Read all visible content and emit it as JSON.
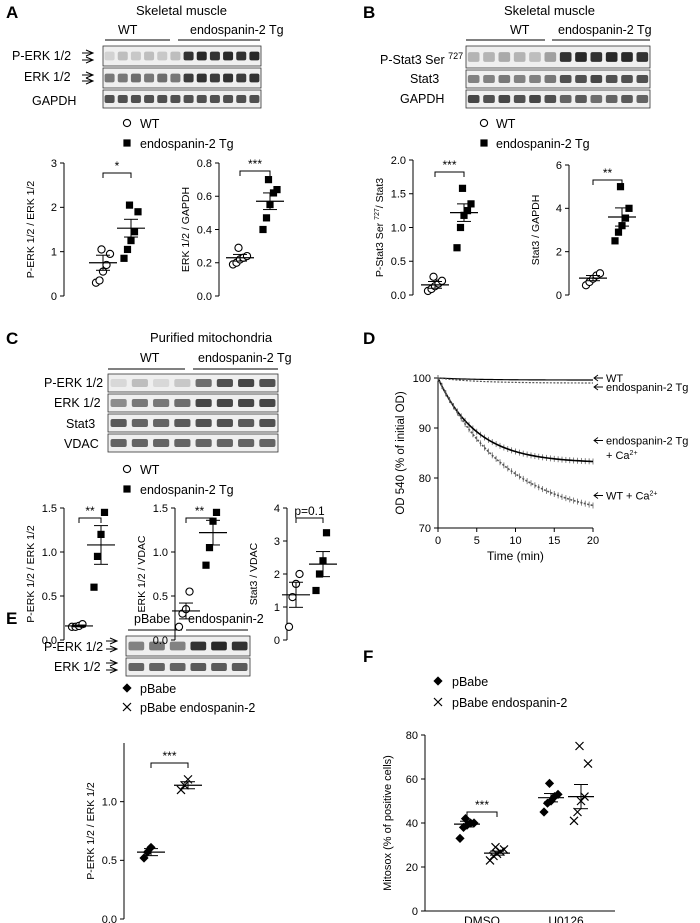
{
  "panels": {
    "A": {
      "letter": "A",
      "title": "Skeletal muscle",
      "groups": [
        "WT",
        "endospanin-2 Tg"
      ],
      "blots": [
        "P-ERK 1/2",
        "ERK 1/2",
        "GAPDH"
      ],
      "legend": [
        "WT",
        "endospanin-2 Tg"
      ]
    },
    "B": {
      "letter": "B",
      "title": "Skeletal muscle",
      "groups": [
        "WT",
        "endospanin-2 Tg"
      ],
      "blots": [
        "P-Stat3 Ser ",
        "Stat3",
        "GAPDH"
      ],
      "blot_sup": "727",
      "legend": [
        "WT",
        "endospanin-2 Tg"
      ]
    },
    "C": {
      "letter": "C",
      "title": "Purified mitochondria",
      "groups": [
        "WT",
        "endospanin-2 Tg"
      ],
      "blots": [
        "P-ERK 1/2",
        "ERK 1/2",
        "Stat3",
        "VDAC"
      ],
      "legend": [
        "WT",
        "endospanin-2 Tg"
      ]
    },
    "D": {
      "letter": "D"
    },
    "E": {
      "letter": "E",
      "groups": [
        "pBabe",
        "endospanin-2"
      ],
      "blots": [
        "P-ERK 1/2",
        "ERK 1/2"
      ],
      "legend": [
        "pBabe",
        "pBabe endospanin-2"
      ]
    },
    "F": {
      "letter": "F",
      "legend": [
        "pBabe",
        "pBabe endospanin-2"
      ]
    }
  },
  "chart_data": [
    {
      "id": "A1",
      "type": "scatter",
      "ylabel": "P-ERK 1/2 / ERK 1/2",
      "ylim": [
        0,
        3
      ],
      "yticks": [
        "0",
        "1",
        "2",
        "3"
      ],
      "significance": "*",
      "series": [
        {
          "name": "WT",
          "values": [
            0.3,
            0.35,
            0.55,
            0.7,
            0.95,
            1.05
          ],
          "mean": 0.75,
          "sem": 0.17
        },
        {
          "name": "endospanin-2 Tg",
          "values": [
            0.85,
            1.05,
            1.25,
            1.45,
            1.9,
            2.05
          ],
          "mean": 1.53,
          "sem": 0.2
        }
      ]
    },
    {
      "id": "A2",
      "type": "scatter",
      "ylabel": "ERK 1/2 / GAPDH",
      "ylim": [
        0,
        0.8
      ],
      "yticks": [
        "0.0",
        "0.2",
        "0.4",
        "0.6",
        "0.8"
      ],
      "significance": "***",
      "series": [
        {
          "name": "WT",
          "values": [
            0.19,
            0.2,
            0.22,
            0.23,
            0.24,
            0.29
          ],
          "mean": 0.23,
          "sem": 0.02
        },
        {
          "name": "endospanin-2 Tg",
          "values": [
            0.4,
            0.47,
            0.55,
            0.62,
            0.64,
            0.7
          ],
          "mean": 0.57,
          "sem": 0.05
        }
      ]
    },
    {
      "id": "B1",
      "type": "scatter",
      "ylabel": "P-Stat3 Ser 727/ Stat3",
      "ylim": [
        0,
        2
      ],
      "yticks": [
        "0.0",
        "0.5",
        "1.0",
        "1.5",
        "2.0"
      ],
      "significance": "***",
      "series": [
        {
          "name": "WT",
          "values": [
            0.06,
            0.09,
            0.13,
            0.17,
            0.21,
            0.27
          ],
          "mean": 0.15,
          "sem": 0.05
        },
        {
          "name": "endospanin-2 Tg",
          "values": [
            0.7,
            1.0,
            1.18,
            1.25,
            1.35,
            1.58
          ],
          "mean": 1.22,
          "sem": 0.13
        }
      ]
    },
    {
      "id": "B2",
      "type": "scatter",
      "ylabel": "Stat3 / GAPDH",
      "ylim": [
        0,
        6
      ],
      "yticks": [
        "0",
        "2",
        "4",
        "6"
      ],
      "significance": "**",
      "series": [
        {
          "name": "WT",
          "values": [
            0.45,
            0.6,
            0.75,
            0.9,
            1.0
          ],
          "mean": 0.78,
          "sem": 0.12
        },
        {
          "name": "endospanin-2 Tg",
          "values": [
            2.5,
            2.9,
            3.2,
            3.55,
            4.0,
            5.0
          ],
          "mean": 3.6,
          "sem": 0.42
        }
      ]
    },
    {
      "id": "C1",
      "type": "scatter",
      "ylabel": "P-ERK 1/2 / ERK 1/2",
      "ylim": [
        0,
        1.5
      ],
      "yticks": [
        "0.0",
        "0.5",
        "1.0",
        "1.5"
      ],
      "significance": "**",
      "series": [
        {
          "name": "WT",
          "values": [
            0.15,
            0.15,
            0.16,
            0.18
          ],
          "mean": 0.16,
          "sem": 0.01
        },
        {
          "name": "endospanin-2 Tg",
          "values": [
            0.6,
            0.95,
            1.2,
            1.45
          ],
          "mean": 1.08,
          "sem": 0.22
        }
      ]
    },
    {
      "id": "C2",
      "type": "scatter",
      "ylabel": "ERK 1/2 / VDAC",
      "ylim": [
        0,
        1.5
      ],
      "yticks": [
        "0.0",
        "0.5",
        "1.0",
        "1.5"
      ],
      "significance": "**",
      "series": [
        {
          "name": "WT",
          "values": [
            0.15,
            0.3,
            0.35,
            0.55
          ],
          "mean": 0.33,
          "sem": 0.09
        },
        {
          "name": "endospanin-2 Tg",
          "values": [
            0.85,
            1.05,
            1.35,
            1.45
          ],
          "mean": 1.22,
          "sem": 0.14
        }
      ]
    },
    {
      "id": "C3",
      "type": "scatter",
      "ylabel": "Stat3 / VDAC",
      "ylim": [
        0,
        4
      ],
      "yticks": [
        "0",
        "1",
        "2",
        "3",
        "4"
      ],
      "significance": "p=0.1",
      "series": [
        {
          "name": "WT",
          "values": [
            0.4,
            1.3,
            1.7,
            2.0
          ],
          "mean": 1.37,
          "sem": 0.38
        },
        {
          "name": "endospanin-2 Tg",
          "values": [
            1.5,
            2.0,
            2.4,
            3.25
          ],
          "mean": 2.3,
          "sem": 0.38
        }
      ]
    },
    {
      "id": "D",
      "type": "line",
      "xlabel": "Time (min)",
      "ylabel": "OD 540 (% of initial OD)",
      "xlim": [
        0,
        20
      ],
      "ylim": [
        70,
        100
      ],
      "xticks": [
        "0",
        "5",
        "10",
        "15",
        "20"
      ],
      "yticks": [
        "70",
        "80",
        "90",
        "100"
      ],
      "series": [
        {
          "name": "WT",
          "end_value": 99.6,
          "tau": 5
        },
        {
          "name": "endospanin-2 Tg",
          "end_value": 99.0,
          "tau": 5
        },
        {
          "name": "endospanin-2 Tg + Ca",
          "end_value": 83.3,
          "tau": 5
        },
        {
          "name": "WT + Ca",
          "end_value": 74.5,
          "tau": 9
        }
      ],
      "series_labels": [
        "WT",
        "endospanin-2 Tg",
        "endospanin-2 Tg",
        "+ Ca",
        "WT + Ca"
      ],
      "ion_sup": "2+"
    },
    {
      "id": "E",
      "type": "scatter",
      "ylabel": "P-ERK 1/2 / ERK 1/2",
      "ylim": [
        0,
        1.5
      ],
      "yticks": [
        "0.0",
        "0.5",
        "1.0"
      ],
      "significance": "***",
      "series": [
        {
          "name": "pBabe",
          "values": [
            0.52,
            0.57,
            0.61
          ],
          "mean": 0.57,
          "sem": 0.03
        },
        {
          "name": "pBabe endospanin-2",
          "values": [
            1.1,
            1.14,
            1.19
          ],
          "mean": 1.14,
          "sem": 0.03
        }
      ]
    },
    {
      "id": "F",
      "type": "scatter",
      "ylabel": "Mitosox (% of positive cells)",
      "ylim": [
        0,
        80
      ],
      "yticks": [
        "0",
        "20",
        "40",
        "60",
        "80"
      ],
      "categories": [
        "DMSO",
        "U0126"
      ],
      "significance": "***",
      "series": [
        {
          "name": "pBabe",
          "groups": [
            [
              33,
              38,
              39,
              40,
              40,
              42
            ],
            [
              45,
              49,
              50,
              52,
              53,
              58
            ]
          ],
          "means": [
            39.5,
            51.5
          ],
          "sems": [
            1.3,
            1.9
          ]
        },
        {
          "name": "pBabe endospanin-2",
          "groups": [
            [
              23,
              25,
              26,
              27,
              28,
              29
            ],
            [
              41,
              45,
              50,
              52,
              67,
              75
            ]
          ],
          "means": [
            26.3,
            52.0
          ],
          "sems": [
            0.9,
            5.5
          ]
        }
      ]
    }
  ]
}
